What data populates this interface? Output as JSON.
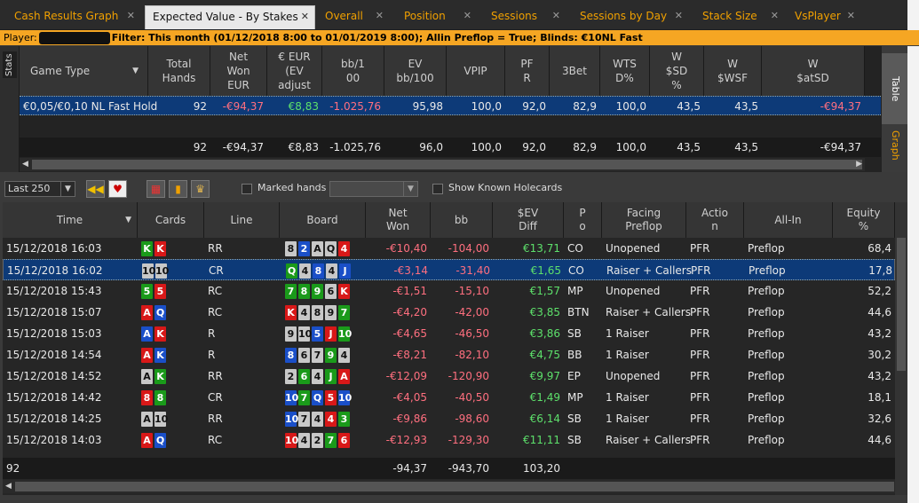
{
  "tabs": [
    {
      "label": "Cash Results Graph",
      "active": false
    },
    {
      "label": "Expected Value - By Stakes",
      "active": true
    },
    {
      "label": "Overall",
      "active": false
    },
    {
      "label": "Position",
      "active": false
    },
    {
      "label": "Sessions",
      "active": false
    },
    {
      "label": "Sessions by Day",
      "active": false
    },
    {
      "label": "Stack Size",
      "active": false
    },
    {
      "label": "VsPlayer",
      "active": false
    }
  ],
  "filter": {
    "player_label": "Player:",
    "filter_text": "Filter: This month (01/12/2018 8:00 to 01/01/2019 8:00); Allin Preflop = True; Blinds: €10NL Fast"
  },
  "stats": {
    "side_label": "Stats",
    "headers": [
      "Game Type",
      "Total\nHands",
      "Net\nWon\nEUR",
      "€ EUR\n(EV\nadjust",
      "bb/1\n00",
      "EV\nbb/100",
      "VPIP",
      "PF\nR",
      "3Bet",
      "WTS\nD%",
      "W\n$SD\n%",
      "W\n$WSF",
      "W\n$atSD"
    ],
    "row": [
      "€0,05/€0,10 NL Fast Hold",
      "92",
      "-€94,37",
      "€8,83",
      "-1.025,76",
      "95,98",
      "100,0",
      "92,0",
      "82,9",
      "100,0",
      "43,5",
      "43,5",
      "-€94,37"
    ],
    "total": [
      "",
      "92",
      "-€94,37",
      "€8,83",
      "-1.025,76",
      "96,0",
      "100,0",
      "92,0",
      "82,9",
      "100,0",
      "43,5",
      "43,5",
      "-€94,37"
    ]
  },
  "side_tabs": [
    "Table",
    "Graph"
  ],
  "toolbar": {
    "range": "Last 250",
    "marked_hands": "Marked hands",
    "show_known": "Show Known Holecards"
  },
  "hands": {
    "headers": [
      "Time",
      "Cards",
      "Line",
      "Board",
      "Net\nWon",
      "bb",
      "$EV\nDiff",
      "P\no",
      "Facing\nPreflop",
      "Actio\nn",
      "All-In",
      "Equity\n%"
    ],
    "rows": [
      {
        "time": "15/12/2018 16:03",
        "cards": [
          [
            "K",
            "g"
          ],
          [
            "K",
            "r"
          ]
        ],
        "line": "RR",
        "board": [
          [
            "8",
            "k"
          ],
          [
            "2",
            "b"
          ],
          [
            "A",
            "k"
          ],
          [
            "Q",
            "k"
          ],
          [
            "4",
            "r"
          ]
        ],
        "net": "-€10,40",
        "bb": "-104,00",
        "ev": "€13,71",
        "pos": "CO",
        "facing": "Unopened",
        "action": "PFR",
        "allin": "Preflop",
        "equity": "68,4"
      },
      {
        "time": "15/12/2018 16:02",
        "cards": [
          [
            "10",
            "k"
          ],
          [
            "10",
            "k"
          ]
        ],
        "line": "CR",
        "board": [
          [
            "Q",
            "g"
          ],
          [
            "4",
            "k"
          ],
          [
            "8",
            "b"
          ],
          [
            "4",
            "k"
          ],
          [
            "J",
            "b"
          ]
        ],
        "net": "-€3,14",
        "bb": "-31,40",
        "ev": "€1,65",
        "pos": "CO",
        "facing": "Raiser + Callers",
        "action": "PFR",
        "allin": "Preflop",
        "equity": "17,8"
      },
      {
        "time": "15/12/2018 15:43",
        "cards": [
          [
            "5",
            "g"
          ],
          [
            "5",
            "r"
          ]
        ],
        "line": "RC",
        "board": [
          [
            "7",
            "g"
          ],
          [
            "8",
            "g"
          ],
          [
            "9",
            "g"
          ],
          [
            "6",
            "k"
          ],
          [
            "K",
            "r"
          ]
        ],
        "net": "-€1,51",
        "bb": "-15,10",
        "ev": "€1,57",
        "pos": "MP",
        "facing": "Unopened",
        "action": "PFR",
        "allin": "Preflop",
        "equity": "52,2"
      },
      {
        "time": "15/12/2018 15:07",
        "cards": [
          [
            "A",
            "r"
          ],
          [
            "Q",
            "b"
          ]
        ],
        "line": "RC",
        "board": [
          [
            "K",
            "r"
          ],
          [
            "4",
            "k"
          ],
          [
            "8",
            "k"
          ],
          [
            "9",
            "k"
          ],
          [
            "7",
            "g"
          ]
        ],
        "net": "-€4,20",
        "bb": "-42,00",
        "ev": "€3,85",
        "pos": "BTN",
        "facing": "Raiser + Callers",
        "action": "PFR",
        "allin": "Preflop",
        "equity": "44,6"
      },
      {
        "time": "15/12/2018 15:03",
        "cards": [
          [
            "A",
            "b"
          ],
          [
            "K",
            "r"
          ]
        ],
        "line": "R",
        "board": [
          [
            "9",
            "k"
          ],
          [
            "10",
            "k"
          ],
          [
            "5",
            "b"
          ],
          [
            "J",
            "r"
          ],
          [
            "10",
            "g"
          ]
        ],
        "net": "-€4,65",
        "bb": "-46,50",
        "ev": "€3,86",
        "pos": "SB",
        "facing": "1 Raiser",
        "action": "PFR",
        "allin": "Preflop",
        "equity": "43,2"
      },
      {
        "time": "15/12/2018 14:54",
        "cards": [
          [
            "A",
            "r"
          ],
          [
            "K",
            "b"
          ]
        ],
        "line": "R",
        "board": [
          [
            "8",
            "b"
          ],
          [
            "6",
            "k"
          ],
          [
            "7",
            "k"
          ],
          [
            "9",
            "g"
          ],
          [
            "4",
            "k"
          ]
        ],
        "net": "-€8,21",
        "bb": "-82,10",
        "ev": "€4,75",
        "pos": "BB",
        "facing": "1 Raiser",
        "action": "PFR",
        "allin": "Preflop",
        "equity": "30,2"
      },
      {
        "time": "15/12/2018 14:52",
        "cards": [
          [
            "A",
            "k"
          ],
          [
            "K",
            "g"
          ]
        ],
        "line": "RR",
        "board": [
          [
            "2",
            "k"
          ],
          [
            "6",
            "g"
          ],
          [
            "4",
            "k"
          ],
          [
            "J",
            "g"
          ],
          [
            "A",
            "r"
          ]
        ],
        "net": "-€12,09",
        "bb": "-120,90",
        "ev": "€9,97",
        "pos": "EP",
        "facing": "Unopened",
        "action": "PFR",
        "allin": "Preflop",
        "equity": "43,2"
      },
      {
        "time": "15/12/2018 14:42",
        "cards": [
          [
            "8",
            "r"
          ],
          [
            "8",
            "g"
          ]
        ],
        "line": "CR",
        "board": [
          [
            "10",
            "b"
          ],
          [
            "7",
            "g"
          ],
          [
            "Q",
            "b"
          ],
          [
            "5",
            "r"
          ],
          [
            "10",
            "b"
          ]
        ],
        "net": "-€4,05",
        "bb": "-40,50",
        "ev": "€1,49",
        "pos": "MP",
        "facing": "1 Raiser",
        "action": "PFR",
        "allin": "Preflop",
        "equity": "18,1"
      },
      {
        "time": "15/12/2018 14:25",
        "cards": [
          [
            "A",
            "k"
          ],
          [
            "10",
            "k"
          ]
        ],
        "line": "RR",
        "board": [
          [
            "10",
            "b"
          ],
          [
            "7",
            "k"
          ],
          [
            "4",
            "k"
          ],
          [
            "4",
            "r"
          ],
          [
            "3",
            "g"
          ]
        ],
        "net": "-€9,86",
        "bb": "-98,60",
        "ev": "€6,14",
        "pos": "SB",
        "facing": "1 Raiser",
        "action": "PFR",
        "allin": "Preflop",
        "equity": "32,6"
      },
      {
        "time": "15/12/2018 14:03",
        "cards": [
          [
            "A",
            "r"
          ],
          [
            "Q",
            "b"
          ]
        ],
        "line": "RC",
        "board": [
          [
            "10",
            "r"
          ],
          [
            "4",
            "k"
          ],
          [
            "2",
            "k"
          ],
          [
            "7",
            "g"
          ],
          [
            "6",
            "r"
          ]
        ],
        "net": "-€12,93",
        "bb": "-129,30",
        "ev": "€11,11",
        "pos": "SB",
        "facing": "Raiser + Callers",
        "action": "PFR",
        "allin": "Preflop",
        "equity": "44,6"
      }
    ],
    "total": {
      "count": "92",
      "net": "-94,37",
      "bb": "-943,70",
      "ev": "103,20"
    }
  }
}
